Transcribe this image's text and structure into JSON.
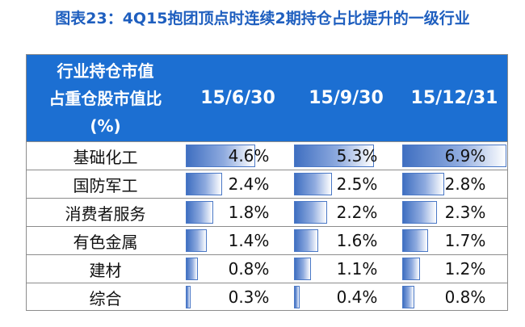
{
  "title": "图表23：4Q15抱团顶点时连续2期持仓占比提升的一级行业",
  "header": {
    "label_lines": [
      "行业持仓市值",
      "占重仓股市值比",
      "(%)"
    ],
    "columns": [
      "15/6/30",
      "15/9/30",
      "15/12/31"
    ]
  },
  "bar_max_value": 6.9,
  "colors": {
    "title": "#1f5fbf",
    "header_bg": "#1c6fd2",
    "bar_dark": "#3f6fc1",
    "bar_border": "#4a78c6"
  },
  "chart_data": {
    "type": "table",
    "title": "图表23：4Q15抱团顶点时连续2期持仓占比提升的一级行业",
    "row_header": "行业持仓市值占重仓股市值比(%)",
    "columns": [
      "15/6/30",
      "15/9/30",
      "15/12/31"
    ],
    "rows": [
      {
        "name": "基础化工",
        "values": [
          4.6,
          5.3,
          6.9
        ],
        "labels": [
          "4.6%",
          "5.3%",
          "6.9%"
        ]
      },
      {
        "name": "国防军工",
        "values": [
          2.4,
          2.5,
          2.8
        ],
        "labels": [
          "2.4%",
          "2.5%",
          "2.8%"
        ]
      },
      {
        "name": "消费者服务",
        "values": [
          1.8,
          2.2,
          2.3
        ],
        "labels": [
          "1.8%",
          "2.2%",
          "2.3%"
        ]
      },
      {
        "name": "有色金属",
        "values": [
          1.4,
          1.6,
          1.7
        ],
        "labels": [
          "1.4%",
          "1.6%",
          "1.7%"
        ]
      },
      {
        "name": "建材",
        "values": [
          0.8,
          1.1,
          1.2
        ],
        "labels": [
          "0.8%",
          "1.1%",
          "1.2%"
        ]
      },
      {
        "name": "综合",
        "values": [
          0.3,
          0.4,
          0.8
        ],
        "labels": [
          "0.3%",
          "0.4%",
          "0.8%"
        ]
      }
    ]
  }
}
